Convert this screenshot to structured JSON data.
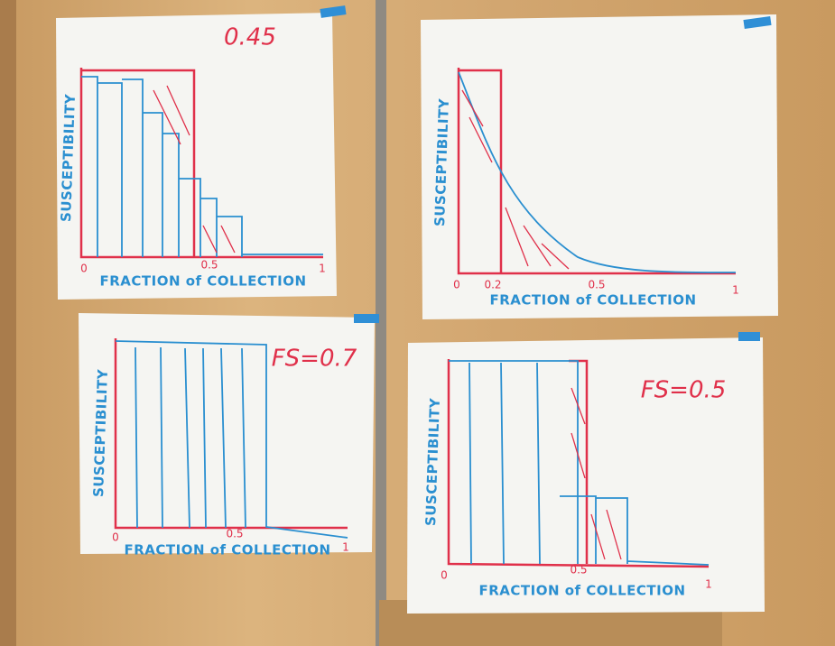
{
  "posters": [
    {
      "annotation": "0.45",
      "y_label": "SUSCEPTIBILITY",
      "x_label": "FRACTION of COLLECTION",
      "x_ticks": [
        "0",
        "0.5",
        "1"
      ]
    },
    {
      "y_label": "SUSCEPTIBILITY",
      "x_label": "FRACTION of COLLECTION",
      "x_ticks": [
        "0",
        "0.2",
        "0.5",
        "1"
      ]
    },
    {
      "annotation": "FS=0.7",
      "y_label": "SUSCEPTIBILITY",
      "x_label": "FRACTION of COLLECTION",
      "x_ticks": [
        "0",
        "0.5",
        "1"
      ]
    },
    {
      "annotation": "FS=0.5",
      "y_label": "SUSCEPTIBILITY",
      "x_label": "FRACTION of COLLECTION",
      "x_ticks": [
        "0",
        "0.5",
        "1"
      ]
    }
  ]
}
